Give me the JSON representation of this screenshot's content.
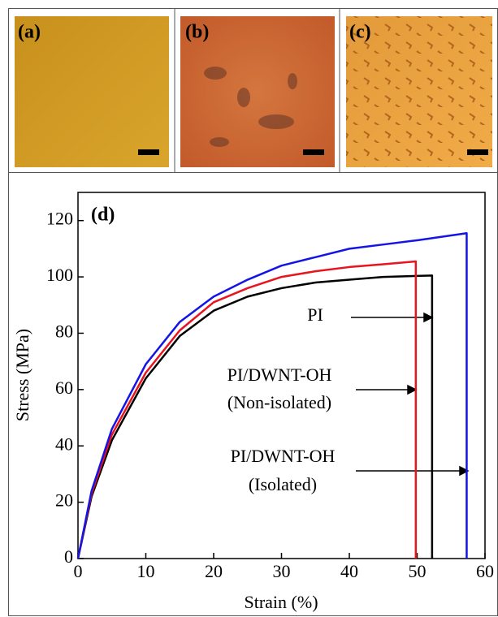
{
  "panels": [
    {
      "label": "(a)"
    },
    {
      "label": "(b)"
    },
    {
      "label": "(c)"
    }
  ],
  "chart_data": {
    "type": "line",
    "title": "(d)",
    "x_label": "Strain (%)",
    "y_label": "Stress (MPa)",
    "xlim": [
      0,
      60
    ],
    "ylim": [
      0,
      130
    ],
    "xticks": [
      0,
      10,
      20,
      30,
      40,
      50,
      60
    ],
    "yticks": [
      0,
      20,
      40,
      60,
      80,
      100,
      120
    ],
    "series": [
      {
        "label": [
          "PI"
        ],
        "color": "#000000",
        "x": [
          0,
          2,
          5,
          10,
          15,
          20,
          25,
          30,
          35,
          40,
          45,
          52.2,
          52.2
        ],
        "values": [
          0,
          22,
          42,
          64,
          79,
          88,
          93,
          96,
          98,
          99,
          100,
          100.5,
          0
        ]
      },
      {
        "label": [
          "PI/DWNT-OH",
          "(Non-isolated)"
        ],
        "color": "#e8141e",
        "x": [
          0,
          2,
          5,
          10,
          15,
          20,
          25,
          30,
          35,
          40,
          45,
          49.8,
          49.8
        ],
        "values": [
          0,
          23,
          44,
          66,
          81,
          91,
          96,
          100,
          102,
          103.5,
          104.5,
          105.5,
          0
        ]
      },
      {
        "label": [
          "PI/DWNT-OH",
          "(Isolated)"
        ],
        "color": "#1414e6",
        "x": [
          0,
          2,
          5,
          10,
          15,
          20,
          25,
          30,
          35,
          40,
          45,
          50,
          57.3,
          57.3
        ],
        "values": [
          0,
          24,
          46,
          69,
          84,
          93,
          99,
          104,
          107,
          110,
          111.5,
          113,
          115.5,
          0
        ]
      }
    ]
  }
}
